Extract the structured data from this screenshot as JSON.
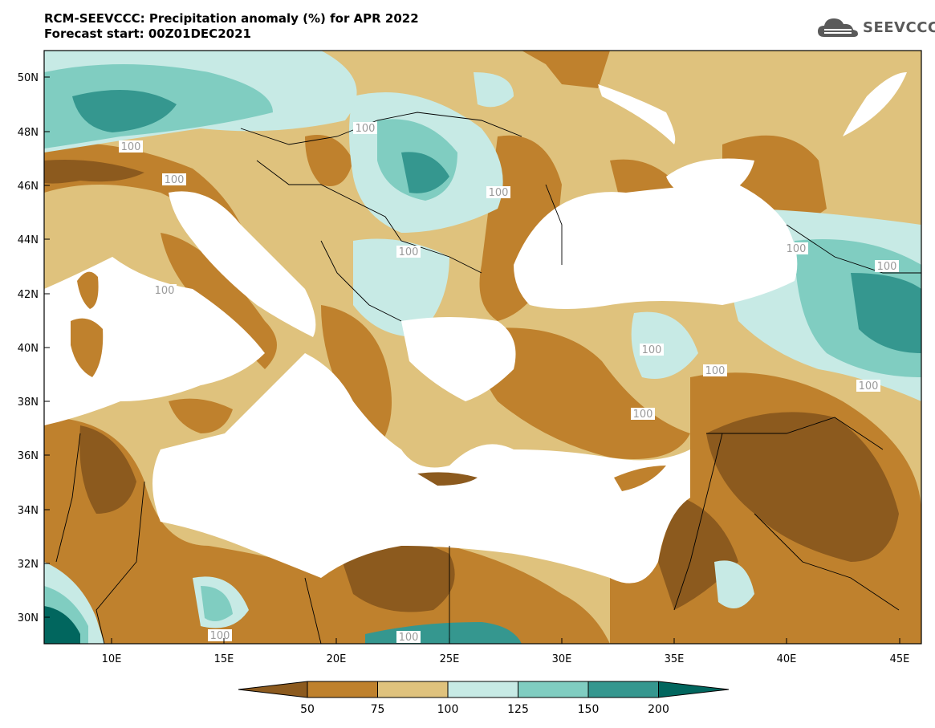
{
  "header": {
    "title_line1": "RCM-SEEVCCC: Precipitation anomaly (%) for APR 2022",
    "title_line2": "Forecast start: 00Z01DEC2021",
    "logo_text": "SEEVCCC"
  },
  "map": {
    "lon_range": [
      7,
      46
    ],
    "lat_range": [
      29,
      51
    ],
    "lat_ticks": [
      "50N",
      "48N",
      "46N",
      "44N",
      "42N",
      "40N",
      "38N",
      "36N",
      "34N",
      "32N",
      "30N"
    ],
    "lon_ticks": [
      "10E",
      "15E",
      "20E",
      "25E",
      "30E",
      "35E",
      "40E",
      "45E"
    ],
    "contour_label": "100"
  },
  "colorbar": {
    "labels": [
      "50",
      "75",
      "100",
      "125",
      "150",
      "200"
    ],
    "colors": [
      "#8c5a1e",
      "#bf812d",
      "#dfc27d",
      "#c7eae5",
      "#80cdc1",
      "#35978f",
      "#01665e"
    ]
  },
  "colors": {
    "sea": "#ffffff",
    "very_dry": "#8c5a1e",
    "dry": "#bf812d",
    "slightly_dry": "#dfc27d",
    "slightly_wet": "#c7eae5",
    "wet": "#80cdc1",
    "very_wet": "#35978f",
    "extreme_wet": "#01665e"
  }
}
